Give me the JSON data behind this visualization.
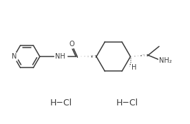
{
  "bg_color": "#ffffff",
  "line_color": "#3a3a3a",
  "font_color": "#3a3a3a",
  "hcl_text": "H−Cl",
  "n_label": "N",
  "nh_label": "NH",
  "h_label": "H",
  "nh2_label": "NH₂",
  "o_label": "O",
  "figsize": [
    2.76,
    1.8
  ],
  "dpi": 100
}
